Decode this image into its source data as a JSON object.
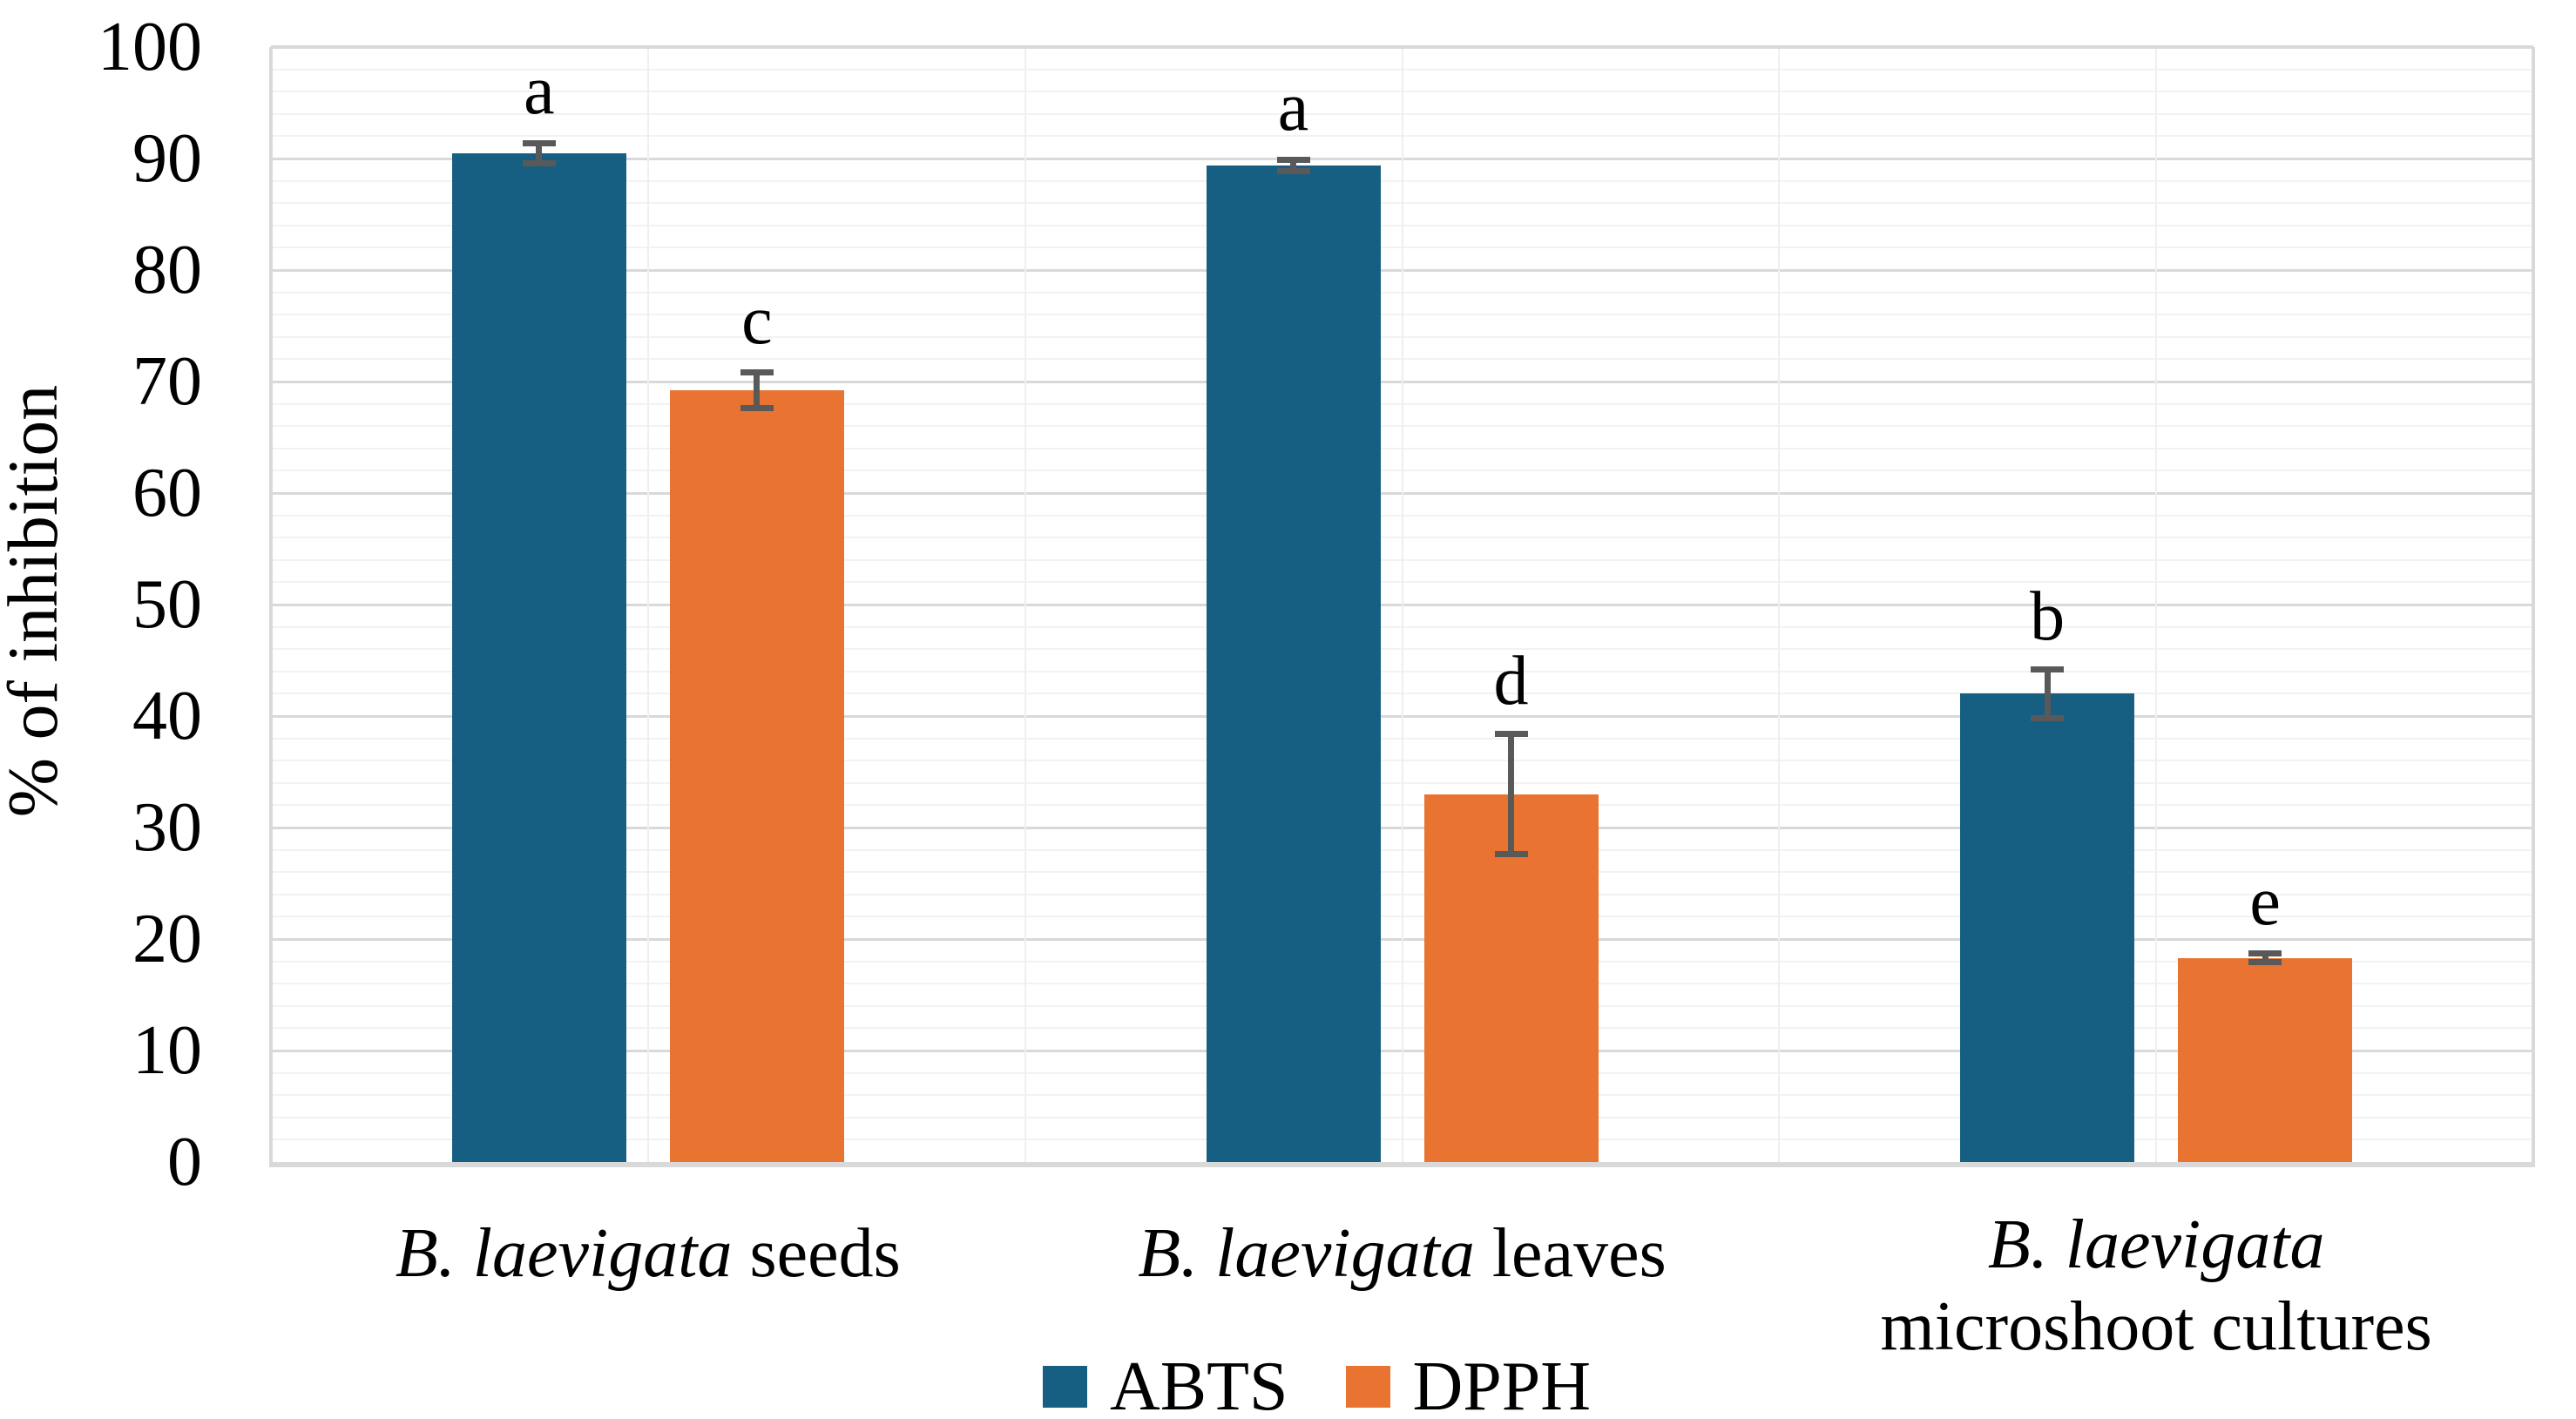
{
  "figure": {
    "background": "#FFFFFF"
  },
  "chart_data": {
    "type": "bar",
    "title": "",
    "ylabel": "% of inhibition",
    "xlabel": "",
    "ylim": [
      0,
      100
    ],
    "yticks": [
      0,
      10,
      20,
      30,
      40,
      50,
      60,
      70,
      80,
      90,
      100
    ],
    "ytick_major_step": 10,
    "ytick_minor_step": 2,
    "grid": "horizontal major and minor gridlines on, light vertical category separators",
    "legend_position": "bottom-center",
    "categories": [
      {
        "italic": "B. laevigata",
        "regular": "seeds",
        "two_lines": false
      },
      {
        "italic": "B. laevigata",
        "regular": "leaves",
        "two_lines": false
      },
      {
        "italic": "B. laevigata",
        "regular": "microshoot cultures",
        "two_lines": true
      }
    ],
    "series": [
      {
        "name": "ABTS",
        "color": "#165F82",
        "values": [
          90.5,
          89.4,
          42.0
        ],
        "errors": [
          0.9,
          0.5,
          2.2
        ],
        "letters": [
          "a",
          "a",
          "b"
        ]
      },
      {
        "name": "DPPH",
        "color": "#E97432",
        "values": [
          69.2,
          33.0,
          18.3
        ],
        "errors": [
          1.6,
          5.4,
          0.4
        ],
        "letters": [
          "c",
          "d",
          "e"
        ]
      }
    ],
    "colors": {
      "error_bar": "#595959",
      "grid_major": "#D9D9D9",
      "grid_minor": "#F2F2F2",
      "grid_vertical": "#EFEFEF",
      "axis_line": "#D9D9D9",
      "text": "#000000"
    }
  }
}
